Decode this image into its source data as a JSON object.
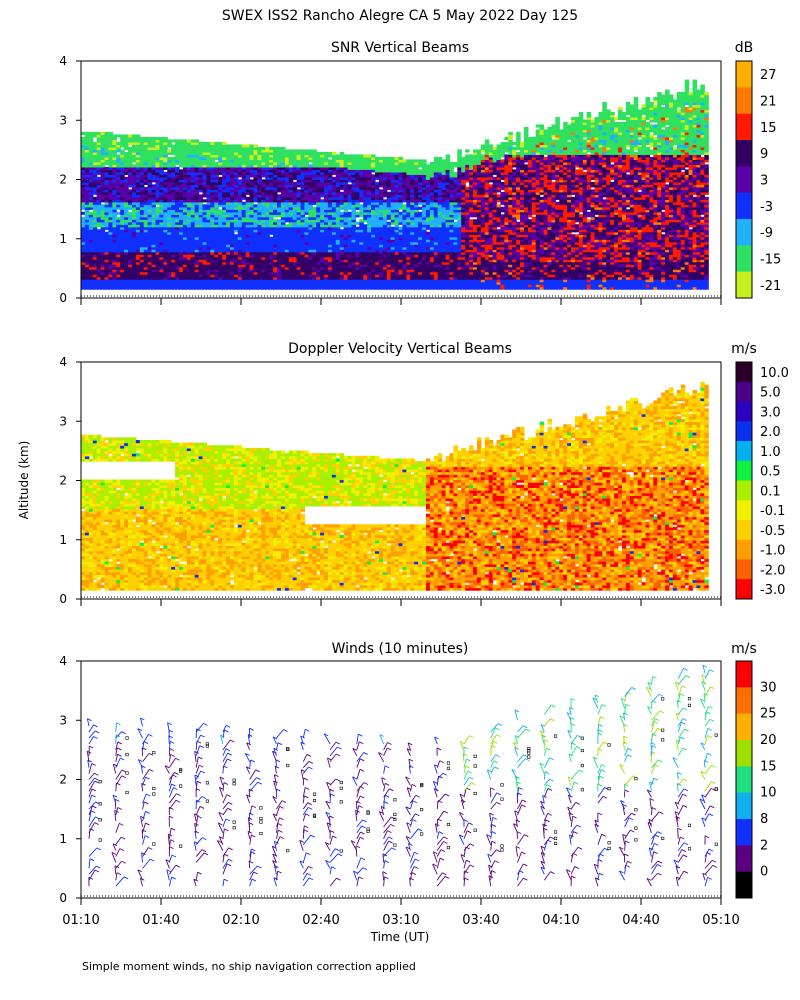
{
  "figure": {
    "title": "SWEX ISS2 Rancho Alegre CA   5 May 2022 Day 125",
    "ylabel": "Altitude (km)",
    "xlabel": "Time (UT)",
    "footnote": "Simple moment winds, no ship navigation correction applied",
    "time_ticks": [
      "01:10",
      "01:40",
      "02:10",
      "02:40",
      "03:10",
      "03:40",
      "04:10",
      "04:40",
      "05:10"
    ],
    "y_ticks": [
      "0",
      "1",
      "2",
      "3",
      "4"
    ]
  },
  "chart_data": [
    {
      "type": "heatmap",
      "title": "SNR Vertical Beams",
      "colorbar_unit": "dB",
      "colorbar_labels": [
        "27",
        "21",
        "15",
        "9",
        "3",
        "-3",
        "-9",
        "-15",
        "-21"
      ],
      "colors": [
        "#ffb000",
        "#ff7a00",
        "#ff1a00",
        "#330066",
        "#5a00a8",
        "#1030ff",
        "#20b0ff",
        "#30e060",
        "#c8f020"
      ],
      "x_range": [
        "01:10",
        "05:10"
      ],
      "ylim": [
        0,
        4
      ],
      "ylabel": "Altitude (km)"
    },
    {
      "type": "heatmap",
      "title": "Doppler Velocity Vertical Beams",
      "colorbar_unit": "m/s",
      "colorbar_labels": [
        "10.0",
        "5.0",
        "3.0",
        "2.0",
        "1.0",
        "0.5",
        "0.1",
        "-0.1",
        "-0.5",
        "-1.0",
        "-2.0",
        "-3.0"
      ],
      "colors": [
        "#2a0028",
        "#4b0088",
        "#2b00c0",
        "#0a30f0",
        "#00b0f0",
        "#10f040",
        "#a8f000",
        "#f0f000",
        "#ffd000",
        "#ffa000",
        "#ff6000",
        "#ff0000"
      ],
      "x_range": [
        "01:10",
        "05:10"
      ],
      "ylim": [
        0,
        4
      ],
      "ylabel": "Altitude (km)"
    },
    {
      "type": "scatter",
      "title": "Winds (10 minutes)",
      "colorbar_unit": "m/s",
      "colorbar_labels": [
        "30",
        "25",
        "20",
        "15",
        "10",
        "8",
        "2",
        "0"
      ],
      "colors": [
        "#ff0000",
        "#ff7000",
        "#ffb000",
        "#a0e000",
        "#20e080",
        "#10b0f0",
        "#1030ff",
        "#5a0080",
        "#000000"
      ],
      "x_range": [
        "01:10",
        "05:10"
      ],
      "ylim": [
        0,
        4
      ],
      "xlabel": "Time (UT)",
      "ylabel": "Altitude (km)"
    }
  ]
}
